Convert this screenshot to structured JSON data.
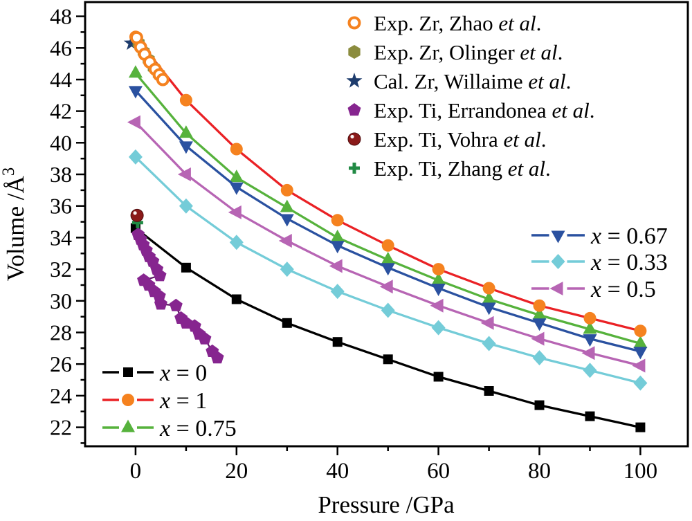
{
  "figure": {
    "background": "#ffffff",
    "frame_color": "#000000",
    "text_color": "#000000"
  },
  "chart_data": {
    "type": "line",
    "title": "",
    "xlabel": "Pressure /GPa",
    "ylabel": "Volume /Å³",
    "ylabel_main": "Volume /Å",
    "ylabel_sup": "3",
    "xlim": [
      -10,
      109.4
    ],
    "ylim": [
      20.8,
      48.9
    ],
    "grid": false,
    "x_major_ticks": [
      0,
      20,
      40,
      60,
      80,
      100
    ],
    "x_minor_ticks": [
      10,
      30,
      50,
      70,
      90
    ],
    "y_major_ticks": [
      22,
      24,
      26,
      28,
      30,
      32,
      34,
      36,
      38,
      40,
      42,
      44,
      46,
      48
    ],
    "y_minor_ticks": [
      21,
      23,
      25,
      27,
      29,
      31,
      33,
      35,
      37,
      39,
      41,
      43,
      45,
      47
    ],
    "pressures": [
      0,
      10,
      20,
      30,
      40,
      50,
      60,
      70,
      80,
      90,
      100
    ],
    "series": [
      {
        "id": "x0",
        "label": "x = 0",
        "line_color": "#000000",
        "marker": "square",
        "marker_color": "#000000",
        "values": [
          34.6,
          32.1,
          30.1,
          28.6,
          27.4,
          26.3,
          25.2,
          24.3,
          23.4,
          22.7,
          22.0
        ]
      },
      {
        "id": "x075",
        "label": "x = 0.75",
        "line_color": "#56b23c",
        "marker": "triangle-up",
        "marker_color": "#56b23c",
        "values": [
          44.4,
          40.6,
          37.8,
          35.9,
          34.0,
          32.6,
          31.3,
          30.1,
          29.1,
          28.2,
          27.3
        ]
      },
      {
        "id": "x067",
        "label": "x = 0.67",
        "line_color": "#2a51a0",
        "marker": "triangle-down",
        "marker_color": "#2a51a0",
        "values": [
          43.3,
          39.8,
          37.2,
          35.2,
          33.5,
          32.1,
          30.8,
          29.6,
          28.6,
          27.6,
          26.8
        ]
      },
      {
        "id": "x05",
        "label": "x = 0.5",
        "line_color": "#b765b4",
        "marker": "triangle-left",
        "marker_color": "#b765b4",
        "values": [
          41.3,
          38.0,
          35.6,
          33.8,
          32.2,
          30.9,
          29.7,
          28.6,
          27.6,
          26.7,
          25.9
        ]
      },
      {
        "id": "x033",
        "label": "x = 0.33",
        "line_color": "#74ccd8",
        "marker": "diamond",
        "marker_color": "#74ccd8",
        "values": [
          39.1,
          36.0,
          33.7,
          32.0,
          30.6,
          29.4,
          28.3,
          27.3,
          26.4,
          25.6,
          24.8
        ]
      },
      {
        "id": "x1",
        "label": "x = 1",
        "line_color": "#ea2125",
        "marker": "circle",
        "marker_color": "#f5821f",
        "values": [
          46.7,
          42.7,
          39.6,
          37.0,
          35.1,
          33.5,
          32.0,
          30.8,
          29.7,
          28.9,
          28.1
        ]
      }
    ],
    "experiments": [
      {
        "id": "willaime",
        "label": "Cal. Zr, Willaime et al.",
        "marker": "star",
        "color": "#1e3c6d",
        "connect": false,
        "points": [
          [
            -0.8,
            46.3
          ]
        ]
      },
      {
        "id": "olinger",
        "label": "Exp. Zr, Olinger et al.",
        "marker": "hexagon",
        "color": "#8b8c3e",
        "connect": false,
        "points": [
          [
            0.6,
            46.3
          ],
          [
            1.6,
            45.75
          ],
          [
            2.6,
            45.25
          ],
          [
            3.6,
            44.75
          ],
          [
            4.6,
            44.35
          ]
        ]
      },
      {
        "id": "zhao",
        "label": "Exp. Zr, Zhao et al.",
        "marker": "open-circle",
        "color": "#f5821f",
        "connect": false,
        "points": [
          [
            0.2,
            46.65
          ],
          [
            1.0,
            46.05
          ],
          [
            1.8,
            45.6
          ],
          [
            2.8,
            45.1
          ],
          [
            3.9,
            44.65
          ],
          [
            4.7,
            44.3
          ],
          [
            5.4,
            44.0
          ]
        ]
      },
      {
        "id": "errandonea",
        "label": "Exp. Ti, Errandonea et al.",
        "marker": "pentagon",
        "color": "#86258f",
        "connect": true,
        "line_color": "#5c1563",
        "points": [
          [
            0.5,
            34.2
          ],
          [
            1.0,
            33.9
          ],
          [
            1.5,
            33.55
          ],
          [
            2.1,
            33.2
          ],
          [
            2.7,
            32.8
          ],
          [
            3.4,
            32.5
          ],
          [
            4.2,
            32.0
          ],
          [
            4.8,
            31.6
          ],
          [
            1.6,
            31.3
          ],
          [
            2.6,
            31.0
          ],
          [
            3.7,
            30.6
          ],
          [
            4.7,
            30.3
          ],
          [
            5.0,
            29.8
          ],
          [
            8.0,
            29.7
          ],
          [
            9.0,
            28.9
          ],
          [
            10.0,
            28.6
          ],
          [
            11.7,
            28.4
          ],
          [
            12.6,
            27.9
          ],
          [
            13.7,
            27.6
          ],
          [
            15.2,
            26.8
          ],
          [
            16.2,
            26.4
          ]
        ]
      },
      {
        "id": "zhang",
        "label": "Exp. Ti, Zhang et al.",
        "marker": "plus",
        "color": "#218a44",
        "connect": false,
        "points": [
          [
            0.4,
            34.95
          ]
        ]
      },
      {
        "id": "vohra",
        "label": "Exp. Ti, Vohra et al.",
        "marker": "ball",
        "color": "#8b1a1a",
        "connect": false,
        "points": [
          [
            0.3,
            35.4
          ]
        ]
      }
    ]
  },
  "legends": {
    "top_right": {
      "items": [
        {
          "ref": "zhao",
          "prefix": "Exp. Zr, Zhao ",
          "italic": "et al",
          "suffix": "."
        },
        {
          "ref": "olinger",
          "prefix": "Exp. Zr, Olinger ",
          "italic": "et al",
          "suffix": "."
        },
        {
          "ref": "willaime",
          "prefix": "Cal. Zr, Willaime ",
          "italic": "et al",
          "suffix": "."
        },
        {
          "ref": "errandonea",
          "prefix": "Exp. Ti, Errandonea ",
          "italic": "et al",
          "suffix": "."
        },
        {
          "ref": "vohra",
          "prefix": "Exp. Ti, Vohra ",
          "italic": "et al",
          "suffix": "."
        },
        {
          "ref": "zhang",
          "prefix": "Exp. Ti, Zhang ",
          "italic": "et al",
          "suffix": "."
        }
      ]
    },
    "bottom_left": {
      "items": [
        {
          "ref": "x0",
          "italic": "x",
          "rest": " = 0"
        },
        {
          "ref": "x1",
          "italic": "x",
          "rest": " = 1"
        },
        {
          "ref": "x075",
          "italic": "x",
          "rest": " = 0.75"
        }
      ]
    },
    "middle_right": {
      "items": [
        {
          "ref": "x067",
          "italic": "x",
          "rest": " = 0.67"
        },
        {
          "ref": "x033",
          "italic": "x",
          "rest": " = 0.33"
        },
        {
          "ref": "x05",
          "italic": "x",
          "rest": " = 0.5"
        }
      ]
    }
  }
}
